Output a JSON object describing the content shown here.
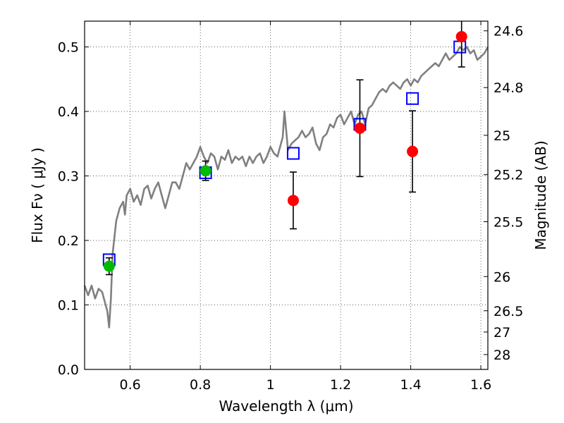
{
  "chart_data": {
    "type": "scatter",
    "title": "",
    "xlabel": "Wavelength  λ (μm)",
    "ylabel": "Flux  Fν ( μJy )",
    "y2label": "Magnitude (AB)",
    "xlim": [
      0.47,
      1.62
    ],
    "ylim": [
      0.0,
      0.54
    ],
    "grid": true,
    "x_ticks": [
      {
        "value": 0.6,
        "label": "0.6"
      },
      {
        "value": 0.8,
        "label": "0.8"
      },
      {
        "value": 1.0,
        "label": "1"
      },
      {
        "value": 1.2,
        "label": "1.2"
      },
      {
        "value": 1.4,
        "label": "1.4"
      },
      {
        "value": 1.6,
        "label": "1.6"
      }
    ],
    "y_ticks": [
      {
        "value": 0.0,
        "label": "0.0"
      },
      {
        "value": 0.1,
        "label": "0.1"
      },
      {
        "value": 0.2,
        "label": "0.2"
      },
      {
        "value": 0.3,
        "label": "0.3"
      },
      {
        "value": 0.4,
        "label": "0.4"
      },
      {
        "value": 0.5,
        "label": "0.5"
      }
    ],
    "y2_ticks": [
      {
        "flux": 0.525,
        "label": "24.6"
      },
      {
        "flux": 0.437,
        "label": "24.8"
      },
      {
        "flux": 0.363,
        "label": "25"
      },
      {
        "flux": 0.302,
        "label": "25.2"
      },
      {
        "flux": 0.229,
        "label": "25.5"
      },
      {
        "flux": 0.144,
        "label": "26"
      },
      {
        "flux": 0.091,
        "label": "26.5"
      },
      {
        "flux": 0.058,
        "label": "27"
      },
      {
        "flux": 0.023,
        "label": "28"
      }
    ],
    "series": [
      {
        "kind": "line",
        "color": "#808080",
        "x": [
          0.47,
          0.48,
          0.49,
          0.5,
          0.51,
          0.52,
          0.53,
          0.535,
          0.54,
          0.545,
          0.55,
          0.56,
          0.57,
          0.58,
          0.585,
          0.59,
          0.6,
          0.61,
          0.62,
          0.63,
          0.64,
          0.65,
          0.66,
          0.67,
          0.68,
          0.69,
          0.7,
          0.71,
          0.72,
          0.73,
          0.74,
          0.75,
          0.76,
          0.77,
          0.78,
          0.79,
          0.8,
          0.81,
          0.82,
          0.83,
          0.84,
          0.85,
          0.86,
          0.87,
          0.88,
          0.89,
          0.9,
          0.91,
          0.92,
          0.93,
          0.94,
          0.95,
          0.96,
          0.97,
          0.98,
          0.99,
          1.0,
          1.01,
          1.02,
          1.03,
          1.035,
          1.04,
          1.05,
          1.06,
          1.07,
          1.08,
          1.09,
          1.1,
          1.11,
          1.12,
          1.13,
          1.14,
          1.15,
          1.16,
          1.17,
          1.18,
          1.19,
          1.2,
          1.21,
          1.22,
          1.23,
          1.24,
          1.25,
          1.26,
          1.27,
          1.28,
          1.29,
          1.3,
          1.31,
          1.32,
          1.33,
          1.34,
          1.35,
          1.36,
          1.37,
          1.38,
          1.39,
          1.4,
          1.41,
          1.42,
          1.43,
          1.44,
          1.45,
          1.46,
          1.47,
          1.48,
          1.49,
          1.5,
          1.51,
          1.52,
          1.53,
          1.54,
          1.55,
          1.56,
          1.57,
          1.58,
          1.59,
          1.6,
          1.61,
          1.62
        ],
        "y": [
          0.13,
          0.115,
          0.13,
          0.11,
          0.125,
          0.12,
          0.1,
          0.09,
          0.065,
          0.11,
          0.18,
          0.23,
          0.25,
          0.26,
          0.24,
          0.27,
          0.28,
          0.26,
          0.27,
          0.255,
          0.28,
          0.285,
          0.265,
          0.28,
          0.29,
          0.27,
          0.25,
          0.27,
          0.29,
          0.29,
          0.28,
          0.3,
          0.32,
          0.31,
          0.32,
          0.33,
          0.345,
          0.33,
          0.32,
          0.335,
          0.33,
          0.31,
          0.33,
          0.325,
          0.34,
          0.32,
          0.33,
          0.325,
          0.33,
          0.315,
          0.33,
          0.32,
          0.33,
          0.335,
          0.32,
          0.33,
          0.345,
          0.335,
          0.33,
          0.35,
          0.36,
          0.4,
          0.34,
          0.35,
          0.355,
          0.36,
          0.37,
          0.36,
          0.365,
          0.375,
          0.35,
          0.34,
          0.36,
          0.365,
          0.38,
          0.375,
          0.39,
          0.395,
          0.38,
          0.39,
          0.4,
          0.38,
          0.395,
          0.4,
          0.38,
          0.405,
          0.41,
          0.42,
          0.43,
          0.435,
          0.43,
          0.44,
          0.445,
          0.44,
          0.435,
          0.445,
          0.45,
          0.44,
          0.45,
          0.445,
          0.455,
          0.46,
          0.465,
          0.47,
          0.475,
          0.47,
          0.48,
          0.49,
          0.48,
          0.485,
          0.49,
          0.5,
          0.495,
          0.5,
          0.49,
          0.495,
          0.48,
          0.485,
          0.49,
          0.5
        ]
      },
      {
        "kind": "open-square",
        "color": "#0000ff",
        "x": [
          0.54,
          0.815,
          1.065,
          1.255,
          1.405,
          1.54
        ],
        "y": [
          0.17,
          0.305,
          0.335,
          0.38,
          0.42,
          0.5
        ]
      },
      {
        "kind": "filled-circle",
        "color": "#ff0000",
        "x": [
          1.065,
          1.255,
          1.405,
          1.545
        ],
        "y": [
          0.262,
          0.374,
          0.338,
          0.516
        ],
        "err": [
          0.044,
          0.075,
          0.063,
          0.047
        ]
      },
      {
        "kind": "filled-circle",
        "color": "#00bb00",
        "x": [
          0.54,
          0.815
        ],
        "y": [
          0.16,
          0.308
        ],
        "err": [
          0.013,
          0.015
        ]
      }
    ]
  }
}
